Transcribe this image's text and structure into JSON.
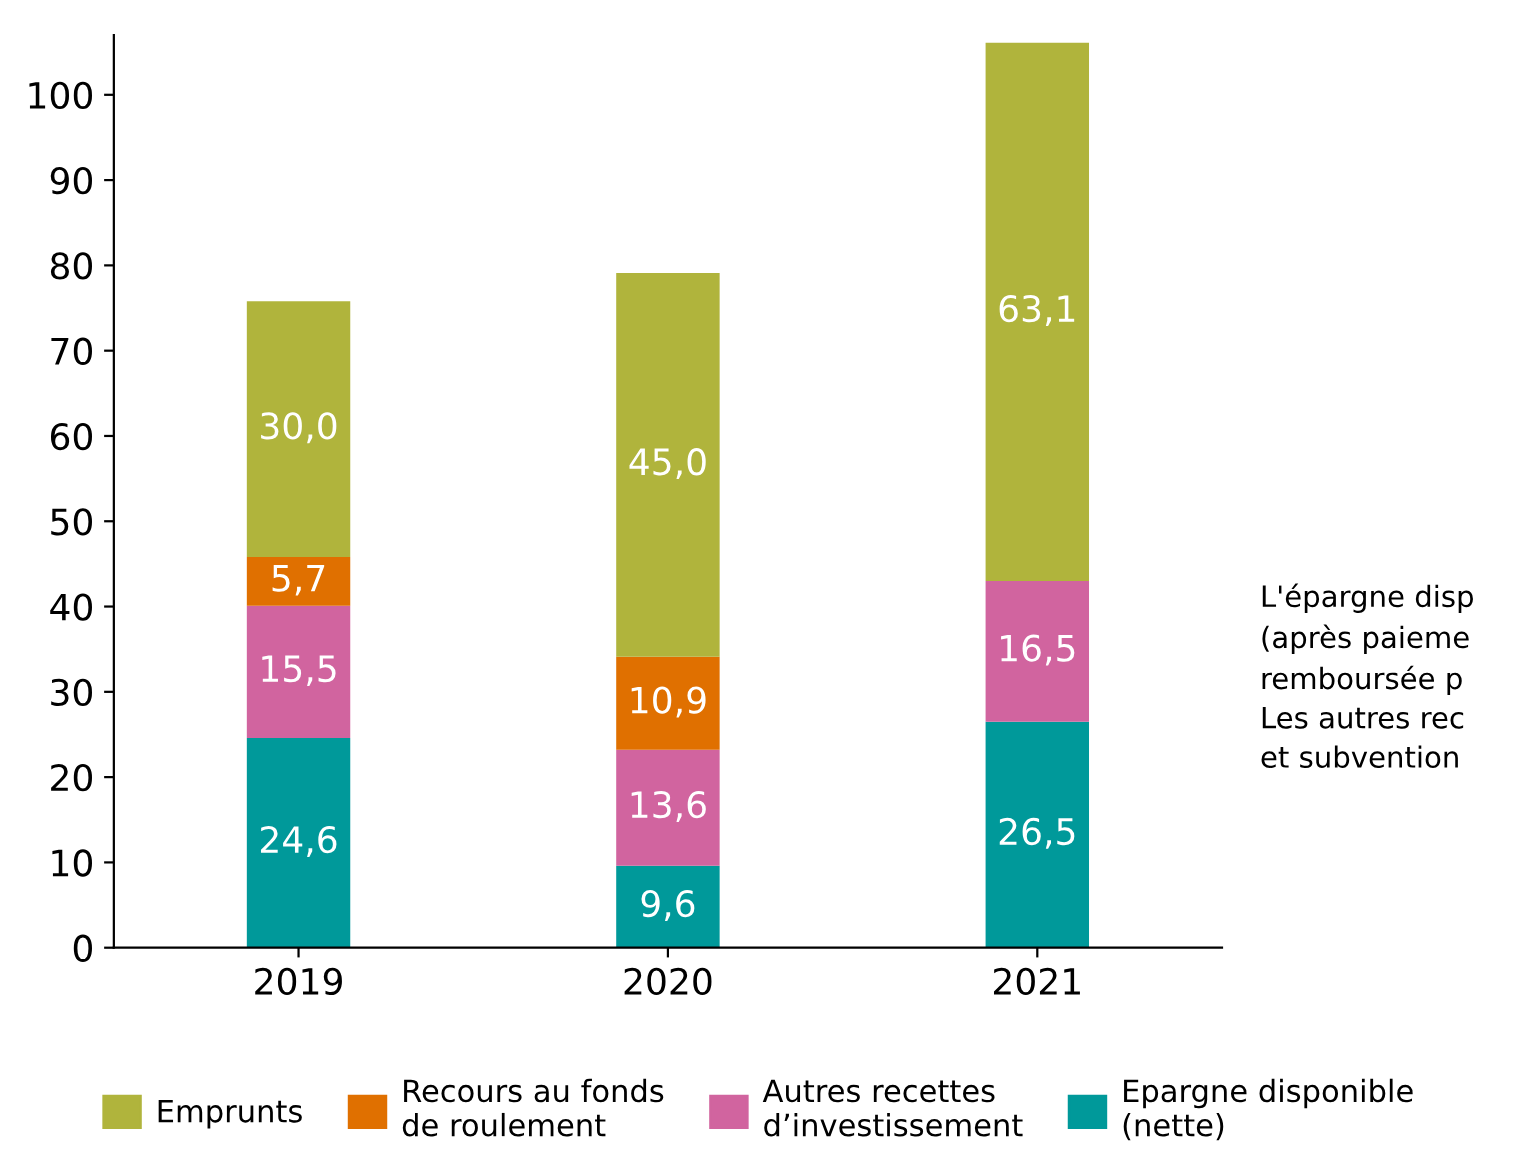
{
  "chart_data": {
    "type": "bar",
    "stacked": true,
    "categories": [
      "2019",
      "2020",
      "2021"
    ],
    "series": [
      {
        "name": "Epargne disponible\n(nette)",
        "color": "#00999a",
        "values": [
          24.6,
          9.6,
          26.5
        ],
        "value_labels": [
          "24,6",
          "9,6",
          "26,5"
        ]
      },
      {
        "name": "Autres recettes\nd’investissement",
        "color": "#d1649f",
        "values": [
          15.5,
          13.6,
          16.5
        ],
        "value_labels": [
          "15,5",
          "13,6",
          "16,5"
        ]
      },
      {
        "name": "Recours au fonds\nde roulement",
        "color": "#e07000",
        "values": [
          5.7,
          10.9,
          null
        ],
        "value_labels": [
          "5,7",
          "10,9",
          null
        ]
      },
      {
        "name": "Emprunts",
        "color": "#b0b43c",
        "values": [
          30.0,
          45.0,
          63.1
        ],
        "value_labels": [
          "30,0",
          "45,0",
          "63,1"
        ]
      }
    ],
    "ylim": [
      0,
      107
    ],
    "yticks": [
      0,
      10,
      20,
      30,
      40,
      50,
      60,
      70,
      80,
      90,
      100
    ],
    "grid": false,
    "legend": "bottom",
    "annotations": [
      "L'épargne disp\n(après paieme\nremboursée p\nLes autres rec\net subvention"
    ]
  }
}
